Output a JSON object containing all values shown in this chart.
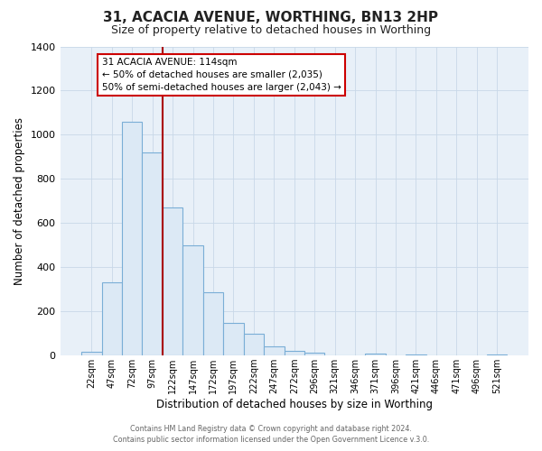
{
  "title": "31, ACACIA AVENUE, WORTHING, BN13 2HP",
  "subtitle": "Size of property relative to detached houses in Worthing",
  "xlabel": "Distribution of detached houses by size in Worthing",
  "ylabel": "Number of detached properties",
  "bar_labels": [
    "22sqm",
    "47sqm",
    "72sqm",
    "97sqm",
    "122sqm",
    "147sqm",
    "172sqm",
    "197sqm",
    "222sqm",
    "247sqm",
    "272sqm",
    "296sqm",
    "321sqm",
    "346sqm",
    "371sqm",
    "396sqm",
    "421sqm",
    "446sqm",
    "471sqm",
    "496sqm",
    "521sqm"
  ],
  "bar_values": [
    18,
    330,
    1060,
    920,
    670,
    500,
    285,
    148,
    100,
    40,
    20,
    13,
    0,
    0,
    10,
    0,
    5,
    0,
    0,
    0,
    3
  ],
  "bar_color": "#dce9f5",
  "bar_edgecolor": "#7aaed6",
  "vline_x_index": 4,
  "vline_color": "#aa0000",
  "ylim": [
    0,
    1400
  ],
  "yticks": [
    0,
    200,
    400,
    600,
    800,
    1000,
    1200,
    1400
  ],
  "annotation_title": "31 ACACIA AVENUE: 114sqm",
  "annotation_line1": "← 50% of detached houses are smaller (2,035)",
  "annotation_line2": "50% of semi-detached houses are larger (2,043) →",
  "annotation_box_facecolor": "#ffffff",
  "annotation_box_edgecolor": "#cc0000",
  "footer_line1": "Contains HM Land Registry data © Crown copyright and database right 2024.",
  "footer_line2": "Contains public sector information licensed under the Open Government Licence v.3.0.",
  "plot_bg_color": "#e8f0f8",
  "figure_bg_color": "#ffffff",
  "grid_color": "#c8d8e8",
  "title_fontsize": 11,
  "subtitle_fontsize": 9
}
